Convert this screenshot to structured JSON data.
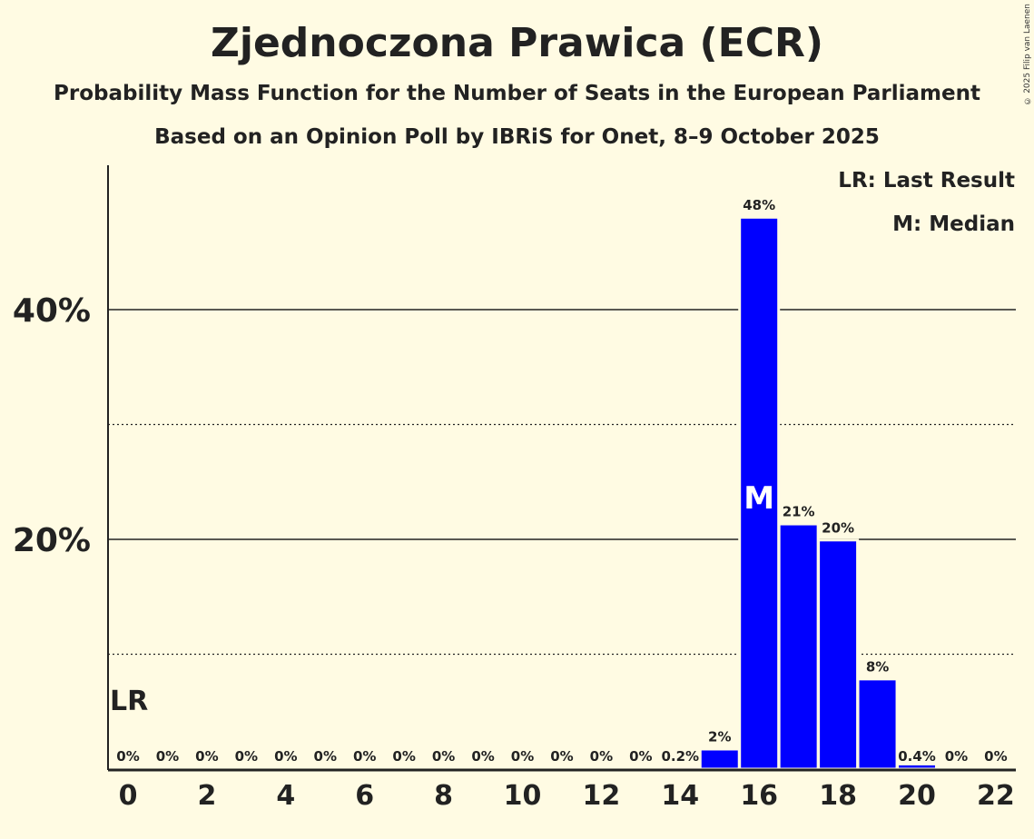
{
  "copyright": "© 2025 Filip van Laenen",
  "chart_data": {
    "type": "bar",
    "title": "Zjednoczona Prawica (ECR)",
    "subtitle": "Probability Mass Function for the Number of Seats in the European Parliament",
    "subtitle2": "Based on an Opinion Poll by IBRiS for Onet, 8–9 October 2025",
    "xlabel": "",
    "ylabel": "",
    "categories": [
      0,
      1,
      2,
      3,
      4,
      5,
      6,
      7,
      8,
      9,
      10,
      11,
      12,
      13,
      14,
      15,
      16,
      17,
      18,
      19,
      20,
      21,
      22
    ],
    "values": [
      0,
      0,
      0,
      0,
      0,
      0,
      0,
      0,
      0,
      0,
      0,
      0,
      0,
      0,
      0.2,
      1.7,
      48,
      21.3,
      19.9,
      7.8,
      0.4,
      0,
      0
    ],
    "value_labels": [
      "0%",
      "0%",
      "0%",
      "0%",
      "0%",
      "0%",
      "0%",
      "0%",
      "0%",
      "0%",
      "0%",
      "0%",
      "0%",
      "0%",
      "0.2%",
      "2%",
      "48%",
      "21%",
      "20%",
      "8%",
      "0.4%",
      "0%",
      "0%"
    ],
    "x_tick_labels": [
      "0",
      "2",
      "4",
      "6",
      "8",
      "10",
      "12",
      "14",
      "16",
      "18",
      "20",
      "22"
    ],
    "y_ticks": [
      {
        "value": 20,
        "label": "20%"
      },
      {
        "value": 40,
        "label": "40%"
      }
    ],
    "minor_gridlines": [
      10,
      30
    ],
    "ylim": [
      0,
      52
    ],
    "bar_color": "#0000ff",
    "last_result": {
      "seats": 0,
      "label": "LR"
    },
    "median": {
      "seats": 16,
      "label": "M"
    },
    "legend": {
      "placement": "top-right",
      "lr": "LR: Last Result",
      "m": "M: Median"
    }
  }
}
